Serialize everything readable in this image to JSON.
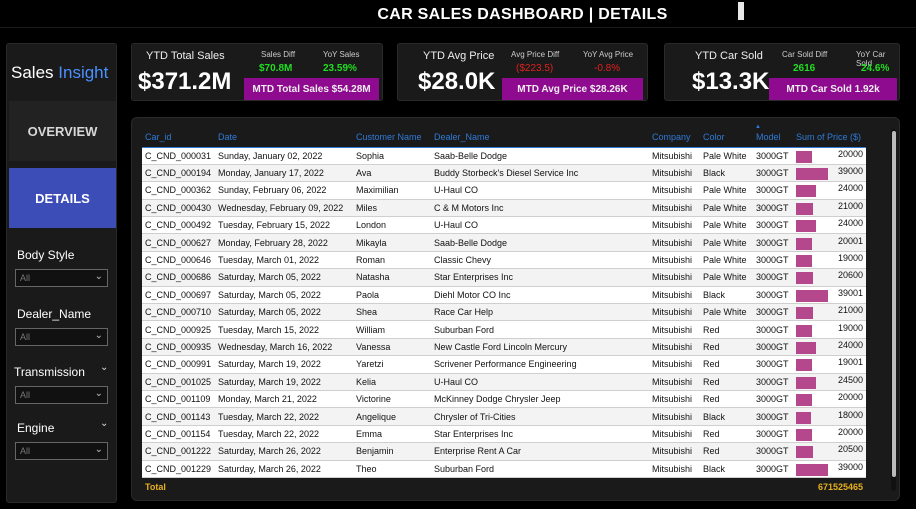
{
  "title": "CAR SALES DASHBOARD | DETAILS",
  "sidebar": {
    "brand_part1": "Sales",
    "brand_part2": "Insight",
    "nav_overview": "OVERVIEW",
    "nav_details": "DETAILS",
    "filters": [
      {
        "label": "Body Style",
        "value": "All"
      },
      {
        "label": "Dealer_Name",
        "value": "All"
      },
      {
        "label": "Transmission",
        "value": "All"
      },
      {
        "label": "Engine",
        "value": "All"
      }
    ]
  },
  "kpi": {
    "sales": {
      "label": "YTD Total Sales",
      "value": "$371.2M",
      "diff_label": "Sales Diff",
      "diff_value": "$70.8M",
      "yoy_label": "YoY Sales",
      "yoy_value": "23.59%",
      "mtd": "MTD Total Sales $54.28M"
    },
    "price": {
      "label": "YTD Avg Price",
      "value": "$28.0K",
      "diff_label": "Avg Price Diff",
      "diff_value": "($223.5)",
      "yoy_label": "YoY Avg Price",
      "yoy_value": "-0.8%",
      "mtd": "MTD Avg Price $28.26K"
    },
    "sold": {
      "label": "YTD Car Sold",
      "value": "$13.3K",
      "diff_label": "Car Sold Diff",
      "diff_value": "2616",
      "yoy_label": "YoY Car Sold",
      "yoy_value": "24.6%",
      "mtd": "MTD Car Sold 1.92k"
    }
  },
  "colors": {
    "accent_blue": "#2f7bd7",
    "nav_active": "#3d4db8",
    "purple": "#8e0a8e",
    "bar": "#b5488c",
    "total": "#e6b020",
    "green": "#22dd22",
    "red": "#e02020"
  },
  "table": {
    "columns": [
      "Car_id",
      "Date",
      "Customer Name",
      "Dealer_Name",
      "Company",
      "Color",
      "Model",
      "Sum of Price ($)"
    ],
    "rows": [
      [
        "C_CND_000031",
        "Sunday, January 02, 2022",
        "Sophia",
        "Saab-Belle Dodge",
        "Mitsubishi",
        "Pale White",
        "3000GT",
        "20000"
      ],
      [
        "C_CND_000194",
        "Monday, January 17, 2022",
        "Ava",
        "Buddy Storbeck's Diesel Service Inc",
        "Mitsubishi",
        "Black",
        "3000GT",
        "39000"
      ],
      [
        "C_CND_000362",
        "Sunday, February 06, 2022",
        "Maximilian",
        "U-Haul CO",
        "Mitsubishi",
        "Pale White",
        "3000GT",
        "24000"
      ],
      [
        "C_CND_000430",
        "Wednesday, February 09, 2022",
        "Miles",
        "C & M Motors Inc",
        "Mitsubishi",
        "Pale White",
        "3000GT",
        "21000"
      ],
      [
        "C_CND_000492",
        "Tuesday, February 15, 2022",
        "London",
        "U-Haul CO",
        "Mitsubishi",
        "Pale White",
        "3000GT",
        "24000"
      ],
      [
        "C_CND_000627",
        "Monday, February 28, 2022",
        "Mikayla",
        "Saab-Belle Dodge",
        "Mitsubishi",
        "Pale White",
        "3000GT",
        "20001"
      ],
      [
        "C_CND_000646",
        "Tuesday, March 01, 2022",
        "Roman",
        "Classic Chevy",
        "Mitsubishi",
        "Pale White",
        "3000GT",
        "19000"
      ],
      [
        "C_CND_000686",
        "Saturday, March 05, 2022",
        "Natasha",
        "Star Enterprises Inc",
        "Mitsubishi",
        "Pale White",
        "3000GT",
        "20600"
      ],
      [
        "C_CND_000697",
        "Saturday, March 05, 2022",
        "Paola",
        "Diehl Motor CO Inc",
        "Mitsubishi",
        "Black",
        "3000GT",
        "39001"
      ],
      [
        "C_CND_000710",
        "Saturday, March 05, 2022",
        "Shea",
        "Race Car Help",
        "Mitsubishi",
        "Pale White",
        "3000GT",
        "21000"
      ],
      [
        "C_CND_000925",
        "Tuesday, March 15, 2022",
        "William",
        "Suburban Ford",
        "Mitsubishi",
        "Red",
        "3000GT",
        "19000"
      ],
      [
        "C_CND_000935",
        "Wednesday, March 16, 2022",
        "Vanessa",
        "New Castle Ford Lincoln Mercury",
        "Mitsubishi",
        "Red",
        "3000GT",
        "24000"
      ],
      [
        "C_CND_000991",
        "Saturday, March 19, 2022",
        "Yaretzi",
        "Scrivener Performance Engineering",
        "Mitsubishi",
        "Red",
        "3000GT",
        "19001"
      ],
      [
        "C_CND_001025",
        "Saturday, March 19, 2022",
        "Kelia",
        "U-Haul CO",
        "Mitsubishi",
        "Red",
        "3000GT",
        "24500"
      ],
      [
        "C_CND_001109",
        "Monday, March 21, 2022",
        "Victorine",
        "McKinney Dodge Chrysler Jeep",
        "Mitsubishi",
        "Red",
        "3000GT",
        "20000"
      ],
      [
        "C_CND_001143",
        "Tuesday, March 22, 2022",
        "Angelique",
        "Chrysler of Tri-Cities",
        "Mitsubishi",
        "Black",
        "3000GT",
        "18000"
      ],
      [
        "C_CND_001154",
        "Tuesday, March 22, 2022",
        "Emma",
        "Star Enterprises Inc",
        "Mitsubishi",
        "Red",
        "3000GT",
        "20000"
      ],
      [
        "C_CND_001222",
        "Saturday, March 26, 2022",
        "Benjamin",
        "Enterprise Rent A Car",
        "Mitsubishi",
        "Red",
        "3000GT",
        "20500"
      ],
      [
        "C_CND_001229",
        "Saturday, March 26, 2022",
        "Theo",
        "Suburban Ford",
        "Mitsubishi",
        "Black",
        "3000GT",
        "39000"
      ]
    ],
    "total_label": "Total",
    "total_value": "671525465"
  }
}
